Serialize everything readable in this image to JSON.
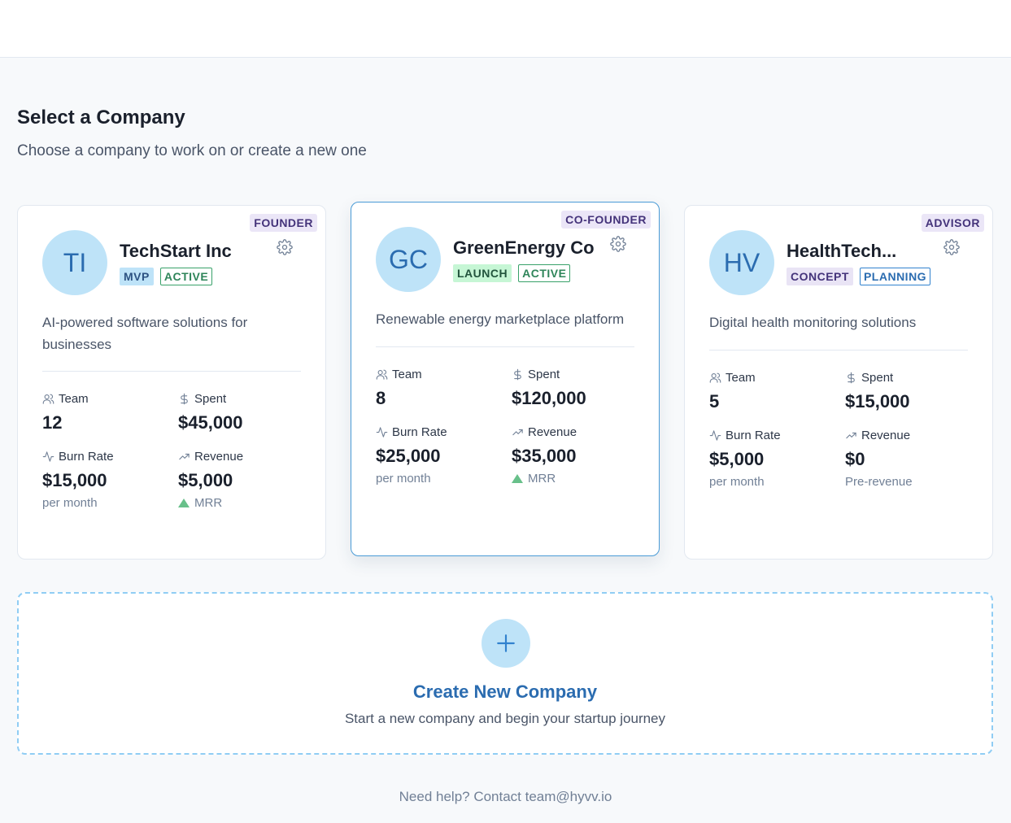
{
  "header": {
    "title": "Select a Company",
    "subtitle": "Choose a company to work on or create a new one"
  },
  "companies": [
    {
      "role": "FOUNDER",
      "initials": "TI",
      "name": "TechStart Inc",
      "stage": "MVP",
      "status": "ACTIVE",
      "description": "AI-powered software solutions for businesses",
      "team_label": "Team",
      "team": "12",
      "spent_label": "Spent",
      "spent": "$45,000",
      "burn_label": "Burn Rate",
      "burn": "$15,000",
      "burn_note": "per month",
      "revenue_label": "Revenue",
      "revenue": "$5,000",
      "revenue_note": "MRR",
      "selected": false
    },
    {
      "role": "CO-FOUNDER",
      "initials": "GC",
      "name": "GreenEnergy Co",
      "stage": "LAUNCH",
      "status": "ACTIVE",
      "description": "Renewable energy marketplace platform",
      "team_label": "Team",
      "team": "8",
      "spent_label": "Spent",
      "spent": "$120,000",
      "burn_label": "Burn Rate",
      "burn": "$25,000",
      "burn_note": "per month",
      "revenue_label": "Revenue",
      "revenue": "$35,000",
      "revenue_note": "MRR",
      "selected": true
    },
    {
      "role": "ADVISOR",
      "initials": "HV",
      "name": "HealthTech...",
      "stage": "CONCEPT",
      "status": "PLANNING",
      "description": "Digital health monitoring solutions",
      "team_label": "Team",
      "team": "5",
      "spent_label": "Spent",
      "spent": "$15,000",
      "burn_label": "Burn Rate",
      "burn": "$5,000",
      "burn_note": "per month",
      "revenue_label": "Revenue",
      "revenue": "$0",
      "revenue_note": "Pre-revenue",
      "selected": false
    }
  ],
  "create": {
    "title": "Create New Company",
    "subtitle": "Start a new company and begin your startup journey"
  },
  "footer": {
    "help": "Need help? Contact team@hyvv.io"
  },
  "colors": {
    "accent": "#2b6cb0",
    "avatar_bg": "#bee3f8",
    "active_green": "#38a169",
    "selected_border": "#4a9bd6"
  },
  "icons": [
    "gear-icon",
    "users-icon",
    "dollar-icon",
    "activity-icon",
    "trending-up-icon",
    "triangle-up-icon",
    "plus-icon"
  ]
}
